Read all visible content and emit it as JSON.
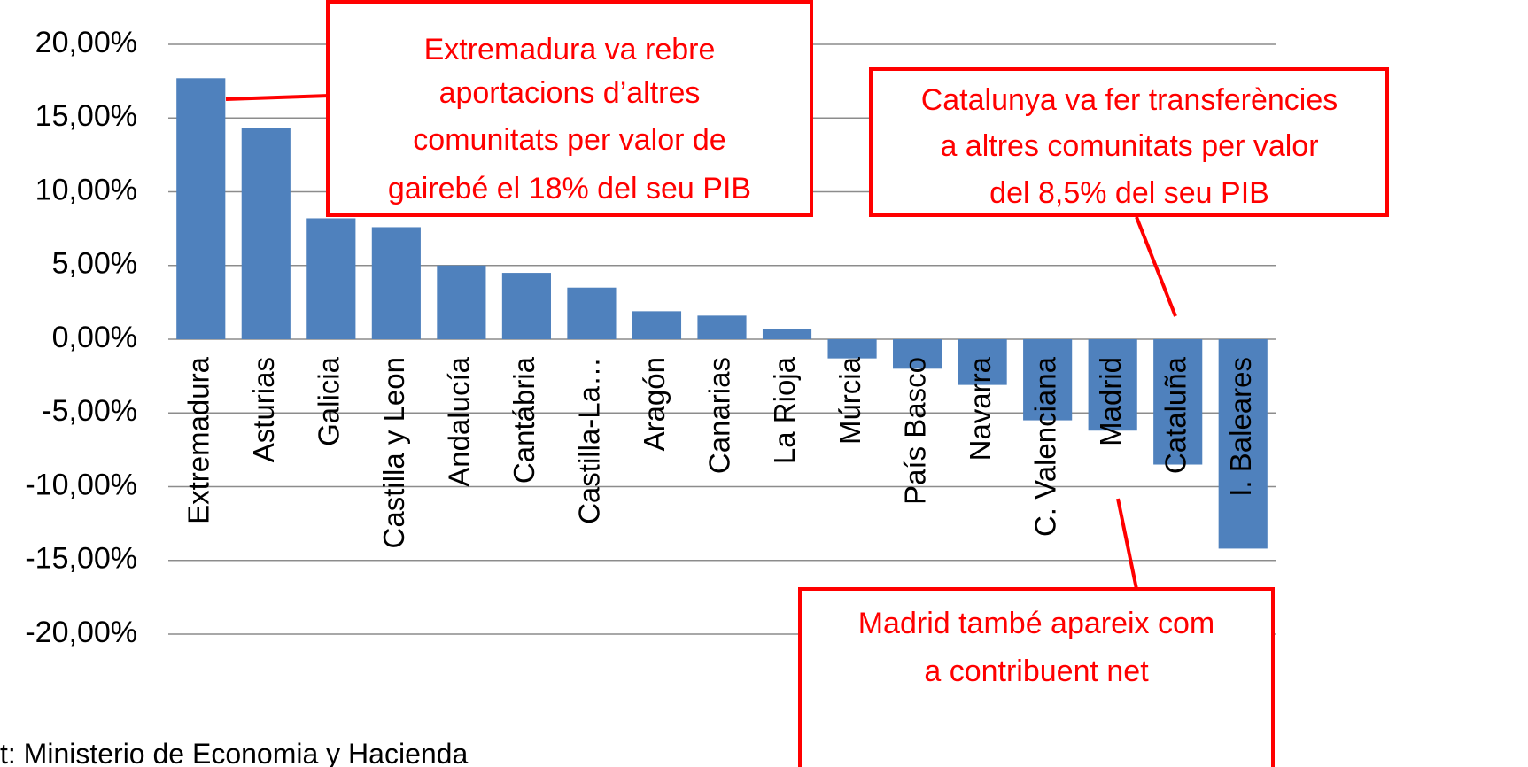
{
  "chart_data": {
    "type": "bar",
    "categories": [
      "Extremadura",
      "Asturias",
      "Galicia",
      "Castilla y Leon",
      "Andalucía",
      "Cantábria",
      "Castilla-La…",
      "Aragón",
      "Canarias",
      "La Rioja",
      "Múrcia",
      "País Basco",
      "Navarra",
      "C. Valenciana",
      "Madrid",
      "Cataluña",
      "I. Baleares"
    ],
    "values": [
      17.7,
      14.3,
      8.2,
      7.6,
      5.0,
      4.5,
      3.5,
      1.9,
      1.6,
      0.7,
      -1.3,
      -2.0,
      -3.1,
      -5.5,
      -6.2,
      -8.5,
      -14.2
    ],
    "color": "#4f81bd",
    "ylim": [
      -20,
      20
    ],
    "yticks": [
      {
        "value": 20,
        "label": "20,00%"
      },
      {
        "value": 15,
        "label": "15,00%"
      },
      {
        "value": 10,
        "label": "10,00%"
      },
      {
        "value": 5,
        "label": "5,00%"
      },
      {
        "value": 0,
        "label": "0,00%"
      },
      {
        "value": -5,
        "label": "-5,00%"
      },
      {
        "value": -10,
        "label": "-10,00%"
      },
      {
        "value": -15,
        "label": "-15,00%"
      },
      {
        "value": -20,
        "label": "-20,00%"
      }
    ],
    "grid": true,
    "annotations": [
      {
        "lines": [
          "Extremadura va rebre",
          "aportacions d’altres",
          "comunitats per valor de",
          "gairebé el 18% del seu PIB"
        ]
      },
      {
        "lines": [
          "Catalunya va fer transferències",
          "a altres comunitats per valor",
          "del 8,5% del seu PIB"
        ]
      },
      {
        "lines": [
          "Madrid també apareix com",
          "a contribuent net"
        ]
      }
    ],
    "source": "t: Ministerio de Economia y Hacienda"
  }
}
